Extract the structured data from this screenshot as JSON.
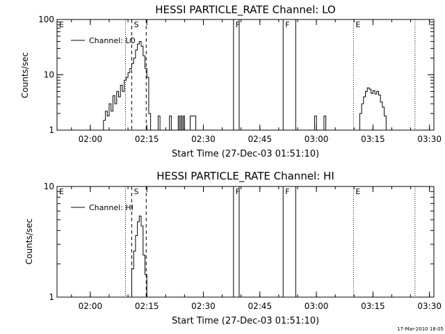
{
  "footer": {
    "timestamp": "17-Mar-2010 18:05"
  },
  "chart_data": [
    {
      "type": "line",
      "title": "HESSI PARTICLE_RATE Channel: LO",
      "xlabel": "Start Time (27-Dec-03 01:51:10)",
      "ylabel": "Counts/sec",
      "yscale": "log",
      "xlim": [
        "01:51:10",
        "03:31:10"
      ],
      "ylim": [
        1,
        100
      ],
      "xticks": [
        "02:00",
        "02:15",
        "02:30",
        "02:45",
        "03:00",
        "03:15",
        "03:30"
      ],
      "yticks": [
        "1",
        "10",
        "100"
      ],
      "legend": {
        "placement": "top-left",
        "label": "Channel: LO"
      },
      "markers": [
        {
          "label": "E",
          "time": "01:51:10",
          "style": "dotted"
        },
        {
          "label": "",
          "time": "02:09:20",
          "style": "dotted"
        },
        {
          "label": "S",
          "time": "02:11:00",
          "style": "dashed"
        },
        {
          "label": "",
          "time": "02:14:50",
          "style": "dashed"
        },
        {
          "label": "F",
          "time": "02:38:00",
          "style": "solid"
        },
        {
          "label": "",
          "time": "02:39:30",
          "style": "solid"
        },
        {
          "label": "F",
          "time": "02:51:10",
          "style": "solid"
        },
        {
          "label": "",
          "time": "02:54:30",
          "style": "solid"
        },
        {
          "label": "E",
          "time": "03:09:50",
          "style": "dotted"
        },
        {
          "label": "",
          "time": "03:26:10",
          "style": "dotted"
        }
      ],
      "series": [
        {
          "name": "Channel: LO",
          "points": [
            [
              "02:03:00",
              1.0
            ],
            [
              "02:03:30",
              1.5
            ],
            [
              "02:04:00",
              2.2
            ],
            [
              "02:04:30",
              1.8
            ],
            [
              "02:05:00",
              3.0
            ],
            [
              "02:05:30",
              2.2
            ],
            [
              "02:06:00",
              4.2
            ],
            [
              "02:06:30",
              3.0
            ],
            [
              "02:07:00",
              5.0
            ],
            [
              "02:07:30",
              4.0
            ],
            [
              "02:08:00",
              6.5
            ],
            [
              "02:08:30",
              5.0
            ],
            [
              "02:09:00",
              8.0
            ],
            [
              "02:09:30",
              9.0
            ],
            [
              "02:10:00",
              11.0
            ],
            [
              "02:10:30",
              13.0
            ],
            [
              "02:11:00",
              16.0
            ],
            [
              "02:11:30",
              20.0
            ],
            [
              "02:12:00",
              28.0
            ],
            [
              "02:12:30",
              36.0
            ],
            [
              "02:13:00",
              40.0
            ],
            [
              "02:13:30",
              33.0
            ],
            [
              "02:14:00",
              22.0
            ],
            [
              "02:14:30",
              13.0
            ],
            [
              "02:15:00",
              9.0
            ],
            [
              "02:15:30",
              2.0
            ],
            [
              "02:16:00",
              1.0
            ],
            [
              "02:17:30",
              1.0
            ],
            [
              "02:18:00",
              1.8
            ],
            [
              "02:18:30",
              1.0
            ],
            [
              "02:20:30",
              1.0
            ],
            [
              "02:21:00",
              1.8
            ],
            [
              "02:21:30",
              1.0
            ],
            [
              "02:23:00",
              1.0
            ],
            [
              "02:23:20",
              1.8
            ],
            [
              "02:23:40",
              1.0
            ],
            [
              "02:24:00",
              1.8
            ],
            [
              "02:24:20",
              1.0
            ],
            [
              "02:24:40",
              1.8
            ],
            [
              "02:25:00",
              1.0
            ],
            [
              "02:26:00",
              1.0
            ],
            [
              "02:26:30",
              1.8
            ],
            [
              "02:27:30",
              1.8
            ],
            [
              "02:28:00",
              1.0
            ],
            [
              "02:59:00",
              1.0
            ],
            [
              "02:59:30",
              1.8
            ],
            [
              "03:00:00",
              1.0
            ],
            [
              "03:01:30",
              1.0
            ],
            [
              "03:02:00",
              1.8
            ],
            [
              "03:02:30",
              1.0
            ],
            [
              "03:11:00",
              1.0
            ],
            [
              "03:11:30",
              2.0
            ],
            [
              "03:12:00",
              3.0
            ],
            [
              "03:12:30",
              4.0
            ],
            [
              "03:13:00",
              5.0
            ],
            [
              "03:13:30",
              5.8
            ],
            [
              "03:14:00",
              5.5
            ],
            [
              "03:14:30",
              4.6
            ],
            [
              "03:15:00",
              5.2
            ],
            [
              "03:15:30",
              4.5
            ],
            [
              "03:16:00",
              5.0
            ],
            [
              "03:16:30",
              4.3
            ],
            [
              "03:17:00",
              3.2
            ],
            [
              "03:17:30",
              2.6
            ],
            [
              "03:18:00",
              1.8
            ],
            [
              "03:18:30",
              1.0
            ]
          ]
        }
      ]
    },
    {
      "type": "line",
      "title": "HESSI PARTICLE_RATE Channel: HI",
      "xlabel": "Start Time (27-Dec-03 01:51:10)",
      "ylabel": "Counts/sec",
      "yscale": "log",
      "xlim": [
        "01:51:10",
        "03:31:10"
      ],
      "ylim": [
        1,
        10
      ],
      "xticks": [
        "02:00",
        "02:15",
        "02:30",
        "02:45",
        "03:00",
        "03:15",
        "03:30"
      ],
      "yticks": [
        "1",
        "10"
      ],
      "legend": {
        "placement": "top-left",
        "label": "Channel: HI"
      },
      "markers": [
        {
          "label": "E",
          "time": "01:51:10",
          "style": "dotted"
        },
        {
          "label": "",
          "time": "02:09:20",
          "style": "dotted"
        },
        {
          "label": "S",
          "time": "02:11:00",
          "style": "dashed"
        },
        {
          "label": "",
          "time": "02:14:50",
          "style": "dashed"
        },
        {
          "label": "F",
          "time": "02:38:00",
          "style": "solid"
        },
        {
          "label": "",
          "time": "02:39:30",
          "style": "solid"
        },
        {
          "label": "F",
          "time": "02:51:10",
          "style": "solid"
        },
        {
          "label": "",
          "time": "02:54:30",
          "style": "solid"
        },
        {
          "label": "E",
          "time": "03:09:50",
          "style": "dotted"
        },
        {
          "label": "",
          "time": "03:26:10",
          "style": "dotted"
        }
      ],
      "series": [
        {
          "name": "Channel: HI",
          "points": [
            [
              "02:10:30",
              1.0
            ],
            [
              "02:11:00",
              1.8
            ],
            [
              "02:11:30",
              2.6
            ],
            [
              "02:12:00",
              3.6
            ],
            [
              "02:12:30",
              4.8
            ],
            [
              "02:13:00",
              5.4
            ],
            [
              "02:13:30",
              4.4
            ],
            [
              "02:14:00",
              2.4
            ],
            [
              "02:14:30",
              1.6
            ],
            [
              "02:15:00",
              1.0
            ]
          ]
        }
      ]
    }
  ]
}
